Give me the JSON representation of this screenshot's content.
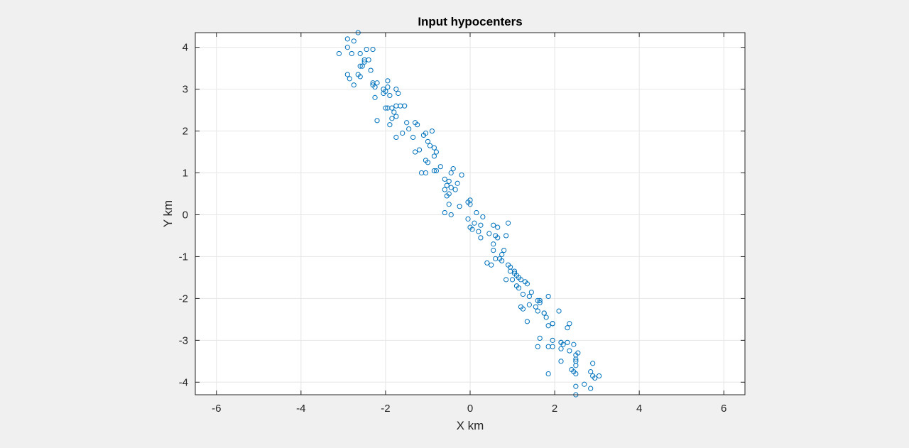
{
  "chart_data": {
    "type": "scatter",
    "title": "Input hypocenters",
    "xlabel": "X km",
    "ylabel": "Y km",
    "xlim": [
      -6.5,
      6.5
    ],
    "ylim": [
      -4.3,
      4.35
    ],
    "xticks": [
      -6,
      -4,
      -2,
      0,
      2,
      4,
      6
    ],
    "yticks": [
      -4,
      -3,
      -2,
      -1,
      0,
      1,
      2,
      3,
      4
    ],
    "xtick_labels": [
      "-6",
      "-4",
      "-2",
      "0",
      "2",
      "4",
      "6"
    ],
    "ytick_labels": [
      "-4",
      "-3",
      "-2",
      "-1",
      "0",
      "1",
      "2",
      "3",
      "4"
    ],
    "grid": true,
    "marker": "circle-open",
    "colors": {
      "marker": "#0072bd",
      "axes_bg": "#ffffff",
      "figure_bg": "#f0f0f0",
      "grid": "#e6e6e6",
      "axis": "#262626"
    },
    "x": [
      -2.65,
      -2.9,
      -2.75,
      -3.1,
      -2.9,
      -2.8,
      -2.6,
      -2.45,
      -2.3,
      -2.4,
      -2.55,
      -2.5,
      -2.5,
      -2.6,
      -2.65,
      -2.35,
      -2.6,
      -2.9,
      -2.85,
      -2.75,
      -2.3,
      -2.2,
      -2.25,
      -2.3,
      -2.05,
      -1.95,
      -1.95,
      -1.75,
      -2.0,
      -2.05,
      -1.9,
      -1.7,
      -2.25,
      -1.95,
      -1.85,
      -2.0,
      -1.75,
      -1.65,
      -1.55,
      -1.8,
      -1.75,
      -1.85,
      -2.2,
      -1.9,
      -1.75,
      -1.5,
      -1.45,
      -1.6,
      -1.3,
      -1.25,
      -1.35,
      -1.1,
      -1.05,
      -0.9,
      -1.0,
      -0.95,
      -0.85,
      -0.8,
      -1.3,
      -1.2,
      -1.05,
      -1.0,
      -0.85,
      -0.7,
      -0.85,
      -0.8,
      -1.05,
      -1.15,
      -0.4,
      -0.45,
      -0.2,
      -0.3,
      -0.6,
      -0.5,
      -0.55,
      -0.6,
      -0.45,
      -0.35,
      -0.5,
      -0.55,
      -0.25,
      -0.5,
      -0.6,
      -0.45,
      0.0,
      -0.05,
      0.0,
      0.15,
      0.3,
      -0.05,
      0.1,
      0.0,
      0.05,
      0.2,
      0.25,
      0.55,
      0.65,
      0.9,
      0.6,
      0.45,
      0.25,
      0.85,
      0.65,
      0.55,
      0.55,
      0.8,
      0.75,
      0.7,
      0.6,
      0.4,
      0.5,
      0.9,
      0.95,
      1.05,
      0.75,
      0.95,
      1.05,
      1.1,
      1.15,
      0.85,
      1.0,
      1.2,
      1.1,
      1.3,
      1.35,
      1.15,
      1.25,
      1.45,
      1.4,
      1.6,
      1.85,
      1.65,
      1.65,
      1.55,
      1.25,
      1.2,
      1.4,
      1.6,
      1.75,
      1.8,
      1.95,
      2.1,
      1.75,
      1.85,
      2.35,
      2.3,
      1.95,
      1.35,
      1.65,
      1.6,
      2.15,
      2.3,
      2.45,
      1.95,
      1.95,
      1.85,
      2.15,
      2.2,
      2.15,
      2.35,
      2.5,
      2.5,
      2.5,
      2.55,
      2.5,
      2.9,
      2.15,
      2.45,
      2.4,
      2.5,
      2.85,
      2.9,
      1.85,
      3.05,
      2.95,
      2.7,
      2.5,
      2.85,
      2.5
    ],
    "y": [
      4.35,
      4.2,
      4.15,
      3.85,
      4.0,
      3.85,
      3.85,
      3.95,
      3.95,
      3.7,
      3.55,
      3.65,
      3.7,
      3.55,
      3.35,
      3.45,
      3.3,
      3.35,
      3.25,
      3.1,
      3.15,
      3.15,
      3.05,
      3.1,
      3.0,
      3.2,
      3.05,
      3.0,
      2.95,
      2.9,
      2.85,
      2.9,
      2.8,
      2.55,
      2.55,
      2.55,
      2.6,
      2.6,
      2.6,
      2.45,
      2.35,
      2.3,
      2.25,
      2.15,
      1.85,
      2.2,
      2.05,
      1.95,
      2.2,
      2.15,
      1.85,
      1.9,
      1.95,
      2.0,
      1.75,
      1.65,
      1.6,
      1.5,
      1.5,
      1.55,
      1.3,
      1.25,
      1.4,
      1.15,
      1.05,
      1.05,
      1.0,
      1.0,
      1.1,
      1.0,
      0.95,
      0.75,
      0.85,
      0.8,
      0.7,
      0.6,
      0.65,
      0.6,
      0.5,
      0.45,
      0.2,
      0.25,
      0.05,
      0.0,
      0.35,
      0.3,
      0.25,
      0.05,
      -0.05,
      -0.1,
      -0.2,
      -0.3,
      -0.35,
      -0.4,
      -0.25,
      -0.25,
      -0.3,
      -0.2,
      -0.5,
      -0.45,
      -0.55,
      -0.5,
      -0.55,
      -0.7,
      -0.85,
      -0.85,
      -0.95,
      -1.05,
      -1.05,
      -1.15,
      -1.2,
      -1.2,
      -1.25,
      -1.35,
      -1.1,
      -1.35,
      -1.4,
      -1.45,
      -1.5,
      -1.55,
      -1.55,
      -1.55,
      -1.7,
      -1.6,
      -1.65,
      -1.75,
      -1.9,
      -1.85,
      -1.95,
      -2.05,
      -1.95,
      -2.05,
      -2.1,
      -2.2,
      -2.25,
      -2.2,
      -2.15,
      -2.3,
      -2.35,
      -2.45,
      -2.6,
      -2.3,
      -2.35,
      -2.65,
      -2.6,
      -2.7,
      -2.6,
      -2.55,
      -2.95,
      -3.15,
      -3.05,
      -3.05,
      -3.1,
      -3.15,
      -3.0,
      -3.15,
      -3.2,
      -3.1,
      -3.05,
      -3.25,
      -3.35,
      -3.45,
      -3.5,
      -3.3,
      -3.6,
      -3.55,
      -3.5,
      -3.75,
      -3.7,
      -3.8,
      -3.75,
      -3.85,
      -3.8,
      -3.85,
      -3.9,
      -4.05,
      -4.1,
      -4.15,
      -4.3
    ]
  }
}
